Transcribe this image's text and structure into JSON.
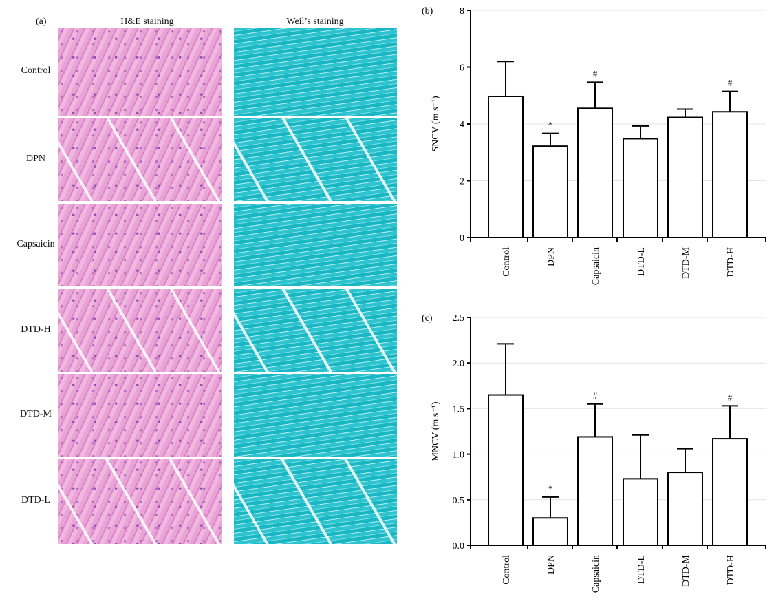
{
  "panel_a": {
    "label": "(a)",
    "columns": [
      "H&E staining",
      "Weil’s staining"
    ],
    "rows": [
      "Control",
      "DPN",
      "Capsaicin",
      "DTD-H",
      "DTD-M",
      "DTD-L"
    ]
  },
  "chart_data": [
    {
      "type": "bar",
      "panel": "(b)",
      "categories": [
        "Control",
        "DPN",
        "Capsaicin",
        "DTD-L",
        "DTD-M",
        "DTD-H"
      ],
      "values": [
        4.97,
        3.22,
        4.55,
        3.48,
        4.23,
        4.43
      ],
      "error_upper": [
        6.2,
        3.67,
        5.47,
        3.93,
        4.52,
        5.15
      ],
      "annotations": [
        "",
        "*",
        "#",
        "",
        "",
        "#"
      ],
      "ylabel": "SNCV (m s⁻¹)",
      "ylim": [
        0,
        8
      ],
      "yticks": [
        "0",
        "2",
        "4",
        "6",
        "8"
      ],
      "grid": true
    },
    {
      "type": "bar",
      "panel": "(c)",
      "categories": [
        "Control",
        "DPN",
        "Capsaicin",
        "DTD-L",
        "DTD-M",
        "DTD-H"
      ],
      "values": [
        1.65,
        0.3,
        1.19,
        0.73,
        0.8,
        1.17
      ],
      "error_upper": [
        2.21,
        0.53,
        1.55,
        1.21,
        1.06,
        1.53
      ],
      "annotations": [
        "",
        "*",
        "#",
        "",
        "",
        "#"
      ],
      "ylabel": "MNCV (m s⁻¹)",
      "ylim": [
        0,
        2.5
      ],
      "yticks": [
        "0.0",
        "0.5",
        "1.0",
        "1.5",
        "2.0",
        "2.5"
      ],
      "grid": true
    }
  ]
}
